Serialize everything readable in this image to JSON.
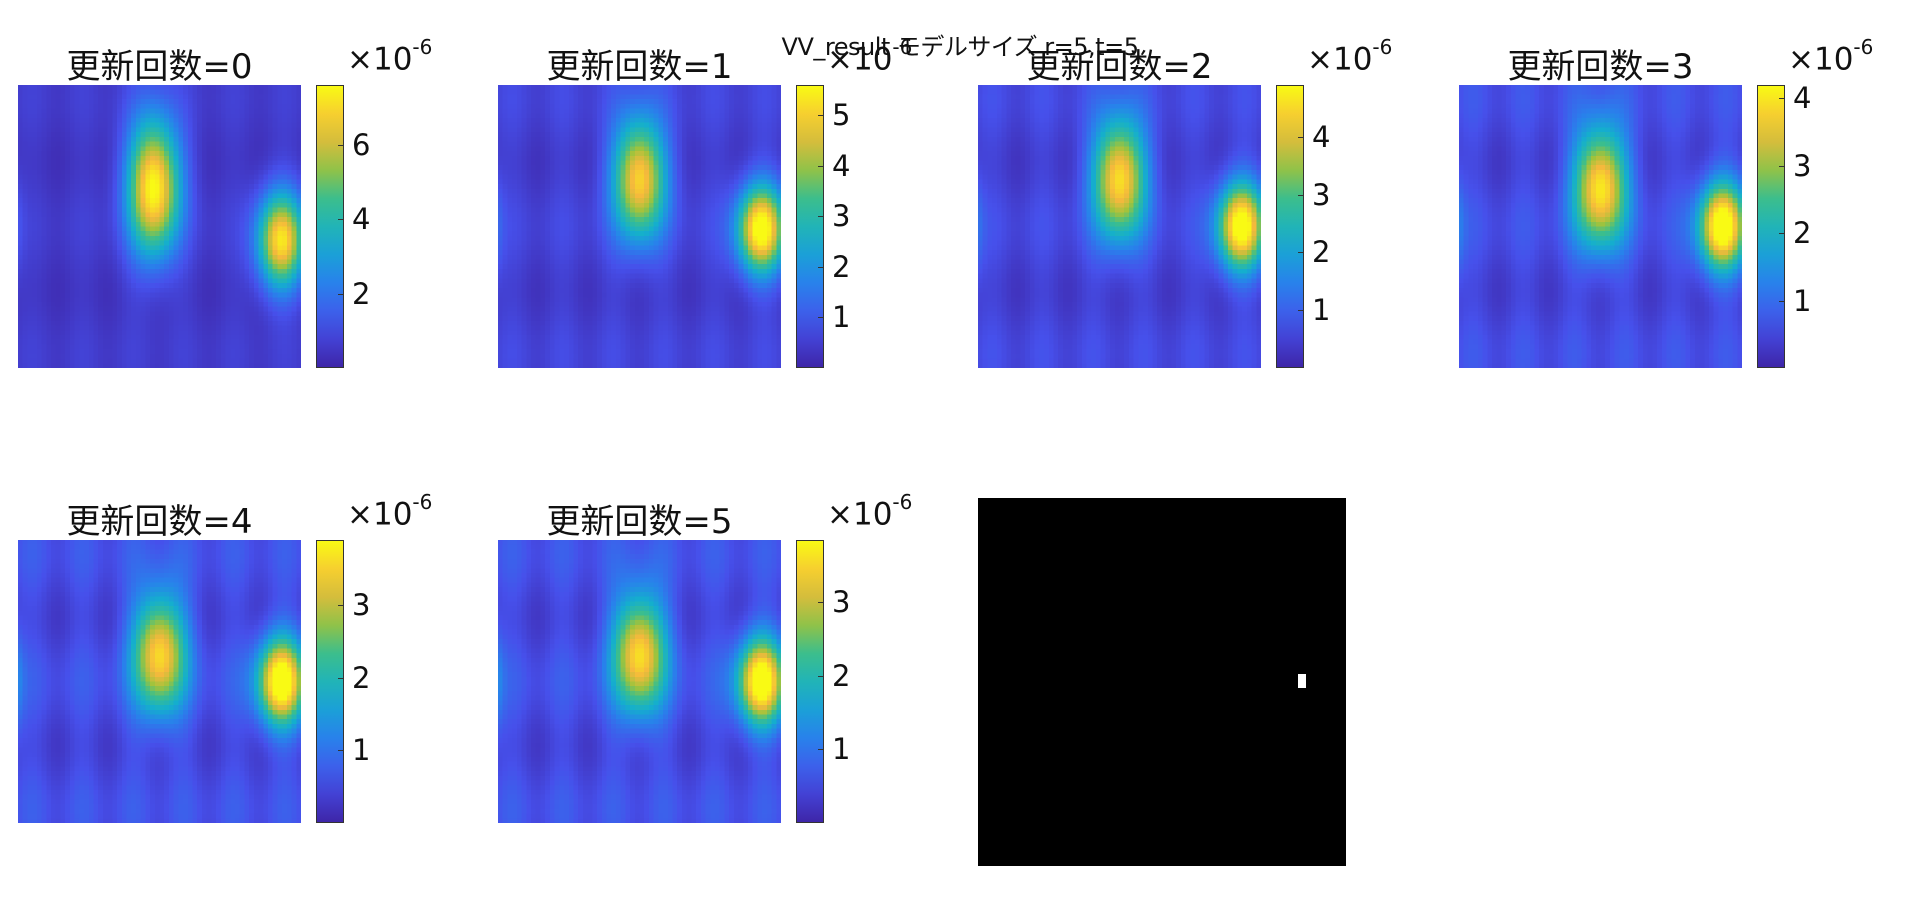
{
  "suptitle": "VV_result モデルサイズ r=5,t=5",
  "chart_data": [
    {
      "type": "heatmap",
      "title": "更新回数=0",
      "colorbar": {
        "ticks": [
          2,
          4,
          6
        ],
        "max": 7.6,
        "multiplier": "×10",
        "exponent": "-6"
      },
      "blobs": [
        {
          "cx": 0.48,
          "cy": 0.36,
          "sx": 0.065,
          "sy": 0.17,
          "a": 7.3
        },
        {
          "cx": 0.93,
          "cy": 0.55,
          "sx": 0.06,
          "sy": 0.12,
          "a": 6.6
        }
      ]
    },
    {
      "type": "heatmap",
      "title": "更新回数=1",
      "colorbar": {
        "ticks": [
          1,
          2,
          3,
          4,
          5
        ],
        "max": 5.6,
        "multiplier": "×10",
        "exponent": "-6"
      },
      "blobs": [
        {
          "cx": 0.5,
          "cy": 0.33,
          "sx": 0.065,
          "sy": 0.15,
          "a": 4.8
        },
        {
          "cx": 0.93,
          "cy": 0.51,
          "sx": 0.06,
          "sy": 0.11,
          "a": 5.3
        }
      ]
    },
    {
      "type": "heatmap",
      "title": "更新回数=2",
      "colorbar": {
        "ticks": [
          1,
          2,
          3,
          4
        ],
        "max": 4.9,
        "multiplier": "×10",
        "exponent": "-6"
      },
      "blobs": [
        {
          "cx": 0.5,
          "cy": 0.33,
          "sx": 0.065,
          "sy": 0.15,
          "a": 4.3
        },
        {
          "cx": 0.93,
          "cy": 0.5,
          "sx": 0.06,
          "sy": 0.11,
          "a": 4.6
        }
      ]
    },
    {
      "type": "heatmap",
      "title": "更新回数=3",
      "colorbar": {
        "ticks": [
          1,
          2,
          3,
          4
        ],
        "max": 4.2,
        "multiplier": "×10",
        "exponent": "-6"
      },
      "blobs": [
        {
          "cx": 0.5,
          "cy": 0.36,
          "sx": 0.065,
          "sy": 0.15,
          "a": 3.7
        },
        {
          "cx": 0.93,
          "cy": 0.5,
          "sx": 0.06,
          "sy": 0.11,
          "a": 4.0
        }
      ]
    },
    {
      "type": "heatmap",
      "title": "更新回数=4",
      "colorbar": {
        "ticks": [
          1,
          2,
          3
        ],
        "max": 3.9,
        "multiplier": "×10",
        "exponent": "-6"
      },
      "blobs": [
        {
          "cx": 0.5,
          "cy": 0.4,
          "sx": 0.065,
          "sy": 0.15,
          "a": 3.2
        },
        {
          "cx": 0.93,
          "cy": 0.5,
          "sx": 0.06,
          "sy": 0.11,
          "a": 3.7
        }
      ]
    },
    {
      "type": "heatmap",
      "title": "更新回数=5",
      "colorbar": {
        "ticks": [
          1,
          2,
          3
        ],
        "max": 3.85,
        "multiplier": "×10",
        "exponent": "-6"
      },
      "blobs": [
        {
          "cx": 0.5,
          "cy": 0.4,
          "sx": 0.065,
          "sy": 0.15,
          "a": 3.2
        },
        {
          "cx": 0.93,
          "cy": 0.5,
          "sx": 0.06,
          "sy": 0.11,
          "a": 3.6
        }
      ]
    },
    {
      "type": "heatmap",
      "title": "",
      "binary_mask": true,
      "background": "#000000",
      "marked_pixel": "#ffffff"
    }
  ]
}
